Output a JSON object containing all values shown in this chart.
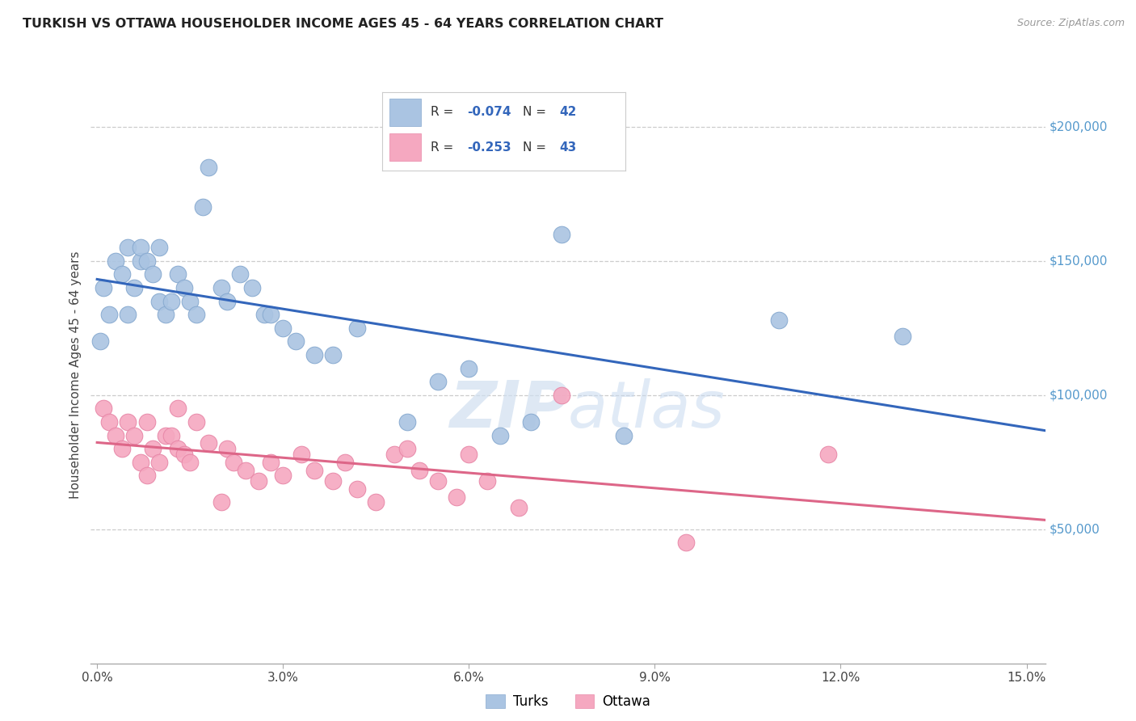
{
  "title": "TURKISH VS OTTAWA HOUSEHOLDER INCOME AGES 45 - 64 YEARS CORRELATION CHART",
  "source": "Source: ZipAtlas.com",
  "xlabel_ticks": [
    "0.0%",
    "3.0%",
    "6.0%",
    "9.0%",
    "12.0%",
    "15.0%"
  ],
  "xlabel_vals": [
    0.0,
    0.03,
    0.06,
    0.09,
    0.12,
    0.15
  ],
  "ylabel": "Householder Income Ages 45 - 64 years",
  "ylabel_ticks": [
    "$200,000",
    "$150,000",
    "$100,000",
    "$50,000"
  ],
  "ylabel_vals": [
    200000,
    150000,
    100000,
    50000
  ],
  "ylim": [
    0,
    215000
  ],
  "xlim": [
    -0.001,
    0.153
  ],
  "turks_R": "-0.074",
  "turks_N": "42",
  "ottawa_R": "-0.253",
  "ottawa_N": "43",
  "turks_color": "#aac4e2",
  "ottawa_color": "#f5a8c0",
  "turks_edge_color": "#88aad0",
  "ottawa_edge_color": "#e888a8",
  "turks_line_color": "#3366bb",
  "ottawa_line_color": "#dd6688",
  "watermark_color": "#d0dff0",
  "bg_color": "#ffffff",
  "grid_color": "#cccccc",
  "turks_x": [
    0.0005,
    0.001,
    0.002,
    0.003,
    0.004,
    0.005,
    0.005,
    0.006,
    0.007,
    0.007,
    0.008,
    0.009,
    0.01,
    0.01,
    0.011,
    0.012,
    0.013,
    0.014,
    0.015,
    0.016,
    0.017,
    0.018,
    0.02,
    0.021,
    0.023,
    0.025,
    0.027,
    0.028,
    0.03,
    0.032,
    0.035,
    0.038,
    0.042,
    0.05,
    0.055,
    0.06,
    0.065,
    0.07,
    0.075,
    0.085,
    0.11,
    0.13
  ],
  "turks_y": [
    120000,
    140000,
    130000,
    150000,
    145000,
    130000,
    155000,
    140000,
    150000,
    155000,
    150000,
    145000,
    135000,
    155000,
    130000,
    135000,
    145000,
    140000,
    135000,
    130000,
    170000,
    185000,
    140000,
    135000,
    145000,
    140000,
    130000,
    130000,
    125000,
    120000,
    115000,
    115000,
    125000,
    90000,
    105000,
    110000,
    85000,
    90000,
    160000,
    85000,
    128000,
    122000
  ],
  "ottawa_x": [
    0.001,
    0.002,
    0.003,
    0.004,
    0.005,
    0.006,
    0.007,
    0.008,
    0.008,
    0.009,
    0.01,
    0.011,
    0.012,
    0.013,
    0.013,
    0.014,
    0.015,
    0.016,
    0.018,
    0.02,
    0.021,
    0.022,
    0.024,
    0.026,
    0.028,
    0.03,
    0.033,
    0.035,
    0.038,
    0.04,
    0.042,
    0.045,
    0.048,
    0.05,
    0.052,
    0.055,
    0.058,
    0.06,
    0.063,
    0.068,
    0.075,
    0.095,
    0.118
  ],
  "ottawa_y": [
    95000,
    90000,
    85000,
    80000,
    90000,
    85000,
    75000,
    70000,
    90000,
    80000,
    75000,
    85000,
    85000,
    80000,
    95000,
    78000,
    75000,
    90000,
    82000,
    60000,
    80000,
    75000,
    72000,
    68000,
    75000,
    70000,
    78000,
    72000,
    68000,
    75000,
    65000,
    60000,
    78000,
    80000,
    72000,
    68000,
    62000,
    78000,
    68000,
    58000,
    100000,
    45000,
    78000
  ]
}
